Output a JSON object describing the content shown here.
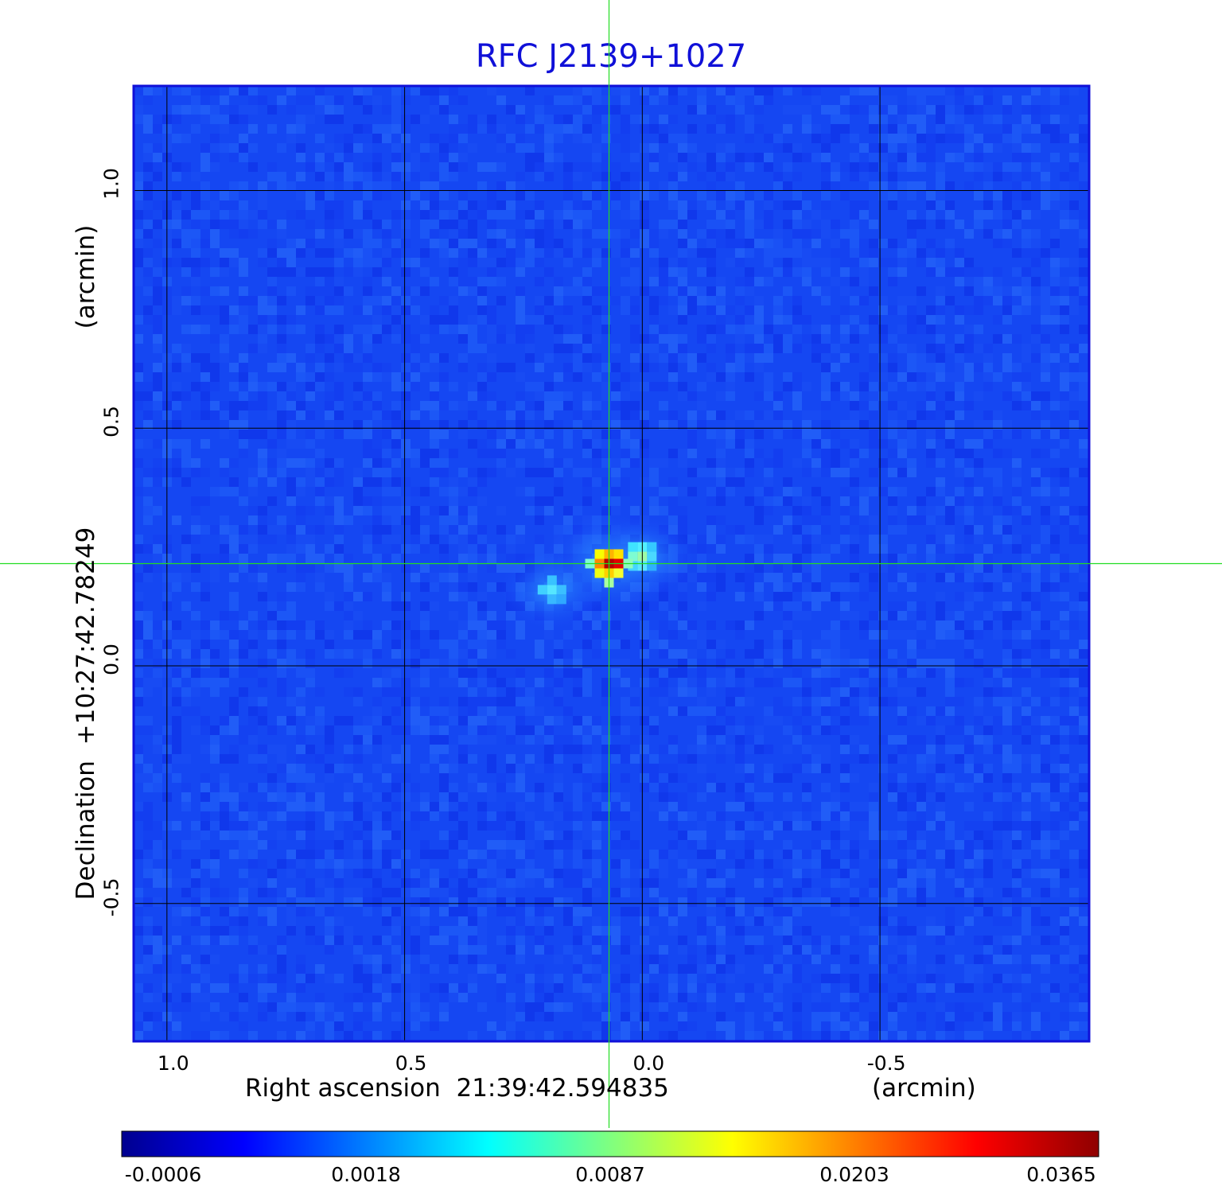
{
  "chart_data": {
    "type": "heatmap",
    "title": "RFC J2139+1027",
    "xlabel": "Right ascension  21:39:42.594835",
    "xunit": "(arcmin)",
    "ylabel": "Declination  +10:27:42.78249",
    "yunit": "(arcmin)",
    "xlim": [
      1.07,
      -0.94
    ],
    "ylim": [
      -0.79,
      1.22
    ],
    "x_ticks": [
      {
        "value": 1.0,
        "label": "1.0"
      },
      {
        "value": 0.5,
        "label": "0.5"
      },
      {
        "value": 0.0,
        "label": "0.0"
      },
      {
        "value": -0.5,
        "label": "-0.5"
      }
    ],
    "y_ticks": [
      {
        "value": 1.0,
        "label": "1.0"
      },
      {
        "value": 0.5,
        "label": "0.5"
      },
      {
        "value": 0.0,
        "label": "0.0"
      },
      {
        "value": -0.5,
        "label": "-0.5"
      }
    ],
    "grid": true,
    "colormap": "jet",
    "crosshair": {
      "x": 0.07,
      "y": 0.215
    },
    "colorbar": {
      "orientation": "horizontal",
      "position": "bottom",
      "ticks": [
        "-0.0006",
        "0.0018",
        "0.0087",
        "0.0203",
        "0.0365"
      ]
    },
    "sources": [
      {
        "x": 0.07,
        "y": 0.215,
        "value": 0.0365
      },
      {
        "x": 0.0,
        "y": 0.23,
        "value": 0.005
      },
      {
        "x": 0.19,
        "y": 0.16,
        "value": 0.0035
      }
    ]
  },
  "colors": {
    "title": "#1010d8",
    "crosshair": "#22dd22",
    "grid": "#000000",
    "frame": "#1010d8"
  }
}
